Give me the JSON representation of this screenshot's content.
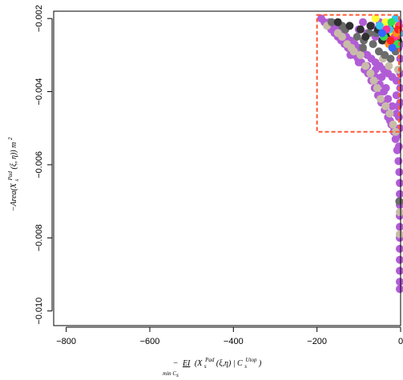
{
  "chart_data": {
    "type": "scatter",
    "title": "",
    "xlabel": {
      "prefix": "−",
      "operator": "EI",
      "operator_sub": "min C",
      "operator_sub2": "s",
      "arg_open": "(X",
      "arg_sub": "s",
      "arg_sup": "Pad",
      "arg_mid": "(ξ,η) | C",
      "cond_sub": "s",
      "cond_sup": "Utop",
      "arg_close": ")"
    },
    "ylabel": {
      "prefix": "−Area(X",
      "sub": "s",
      "sup": "Pad",
      "suffix": "(ξ, η)) m",
      "unit_sup": "2"
    },
    "xlim": [
      -830,
      0
    ],
    "ylim": [
      -0.0104,
      -0.0018
    ],
    "xticks": [
      -800,
      -600,
      -400,
      -200,
      0
    ],
    "xtick_labels": [
      "−800",
      "−600",
      "−400",
      "−200",
      "0"
    ],
    "yticks": [
      -0.01,
      -0.008,
      -0.006,
      -0.004,
      -0.002
    ],
    "ytick_labels": [
      "−0.010",
      "−0.008",
      "−0.006",
      "−0.004",
      "−0.002"
    ],
    "highlight_box": {
      "x": [
        -200,
        0
      ],
      "y": [
        -0.0051,
        -0.0019
      ],
      "color": "#ff5733",
      "style": "dashed"
    },
    "series": [
      {
        "color": "#b15cd6",
        "values": [
          [
            -190,
            -0.002
          ],
          [
            -182,
            -0.0021
          ],
          [
            -174,
            -0.0022
          ],
          [
            -166,
            -0.0023
          ],
          [
            -158,
            -0.0024
          ],
          [
            -150,
            -0.0025
          ],
          [
            -142,
            -0.0026
          ],
          [
            -134,
            -0.0027
          ],
          [
            -126,
            -0.0028
          ],
          [
            -118,
            -0.0029
          ],
          [
            -110,
            -0.003
          ],
          [
            -102,
            -0.0031
          ],
          [
            -94,
            -0.0032
          ],
          [
            -86,
            -0.0034
          ],
          [
            -78,
            -0.0035
          ],
          [
            -70,
            -0.0037
          ],
          [
            -62,
            -0.0039
          ],
          [
            -54,
            -0.0041
          ],
          [
            -46,
            -0.0043
          ],
          [
            -38,
            -0.0045
          ],
          [
            -30,
            -0.0047
          ],
          [
            -22,
            -0.0049
          ],
          [
            -16,
            -0.0051
          ],
          [
            -12,
            -0.0053
          ],
          [
            -8,
            -0.0056
          ],
          [
            -5,
            -0.0059
          ],
          [
            -3,
            -0.0062
          ],
          [
            -2,
            -0.0065
          ],
          [
            -2,
            -0.0068
          ],
          [
            -2,
            -0.0071
          ],
          [
            -2,
            -0.0074
          ],
          [
            -2,
            -0.0077
          ],
          [
            -2,
            -0.008
          ],
          [
            -2,
            -0.0083
          ],
          [
            -2,
            -0.0086
          ],
          [
            -2,
            -0.0089
          ],
          [
            -2,
            -0.0092
          ],
          [
            -2,
            -0.0094
          ],
          [
            -170,
            -0.0021
          ],
          [
            -160,
            -0.0022
          ],
          [
            -150,
            -0.0023
          ],
          [
            -140,
            -0.0024
          ],
          [
            -130,
            -0.0025
          ],
          [
            -120,
            -0.0026
          ],
          [
            -110,
            -0.0027
          ],
          [
            -100,
            -0.0028
          ],
          [
            -90,
            -0.0029
          ],
          [
            -80,
            -0.003
          ],
          [
            -70,
            -0.0031
          ],
          [
            -60,
            -0.0032
          ],
          [
            -50,
            -0.0033
          ],
          [
            -40,
            -0.0034
          ],
          [
            -30,
            -0.0035
          ],
          [
            -20,
            -0.0036
          ],
          [
            -10,
            -0.0037
          ],
          [
            -60,
            -0.0036
          ],
          [
            -50,
            -0.0038
          ],
          [
            -40,
            -0.004
          ],
          [
            -30,
            -0.0042
          ],
          [
            -20,
            -0.0044
          ],
          [
            -10,
            -0.0046
          ],
          [
            -25,
            -0.0048
          ],
          [
            -15,
            -0.005
          ],
          [
            -8,
            -0.0052
          ],
          [
            -4,
            -0.0055
          ],
          [
            -100,
            -0.0023
          ],
          [
            -80,
            -0.0024
          ],
          [
            -60,
            -0.0025
          ],
          [
            -40,
            -0.0026
          ],
          [
            -20,
            -0.0027
          ],
          [
            -5,
            -0.0028
          ],
          [
            -120,
            -0.003
          ],
          [
            -100,
            -0.0032
          ],
          [
            -80,
            -0.0033
          ],
          [
            -60,
            -0.0034
          ],
          [
            -45,
            -0.0036
          ],
          [
            -35,
            -0.0039
          ],
          [
            -10,
            -0.0041
          ],
          [
            -6,
            -0.0044
          ],
          [
            -4,
            -0.0047
          ],
          [
            -2,
            -0.005
          ],
          [
            -30,
            -0.0022
          ],
          [
            -15,
            -0.0023
          ],
          [
            -5,
            -0.0021
          ],
          [
            -50,
            -0.0021
          ],
          [
            -70,
            -0.0022
          ],
          [
            -90,
            -0.0021
          ],
          [
            -1,
            -0.0031
          ],
          [
            -1,
            -0.0035
          ],
          [
            -1,
            -0.0039
          ],
          [
            -1,
            -0.0043
          ],
          [
            -1,
            -0.0024
          ],
          [
            -1,
            -0.0027
          ]
        ]
      },
      {
        "color": "#c8bca8",
        "values": [
          [
            -176,
            -0.0022
          ],
          [
            -150,
            -0.0024
          ],
          [
            -128,
            -0.0027
          ],
          [
            -112,
            -0.0029
          ],
          [
            -96,
            -0.003
          ],
          [
            -84,
            -0.0033
          ],
          [
            -72,
            -0.0035
          ],
          [
            -64,
            -0.0037
          ],
          [
            -56,
            -0.0039
          ],
          [
            -48,
            -0.0042
          ],
          [
            -36,
            -0.0044
          ],
          [
            -26,
            -0.0046
          ],
          [
            -18,
            -0.0049
          ],
          [
            -12,
            -0.0051
          ],
          [
            -140,
            -0.0025
          ],
          [
            -118,
            -0.0028
          ],
          [
            -42,
            -0.0031
          ],
          [
            -28,
            -0.0033
          ],
          [
            -6,
            -0.0034
          ],
          [
            -2,
            -0.0073
          ],
          [
            -2,
            -0.0079
          ]
        ]
      },
      {
        "color": "#6b6b6b",
        "values": [
          [
            -165,
            -0.0021
          ],
          [
            -132,
            -0.0023
          ],
          [
            -104,
            -0.0025
          ],
          [
            -88,
            -0.0026
          ],
          [
            -66,
            -0.0027
          ],
          [
            -52,
            -0.0029
          ],
          [
            -38,
            -0.003
          ],
          [
            -24,
            -0.0031
          ],
          [
            -12,
            -0.0029
          ],
          [
            -140,
            -0.0022
          ],
          [
            -75,
            -0.0024
          ],
          [
            -58,
            -0.0024
          ],
          [
            -20,
            -0.0025
          ],
          [
            -90,
            -0.0028
          ],
          [
            -3,
            -0.007
          ]
        ]
      },
      {
        "color": "#2f2f2f",
        "values": [
          [
            -150,
            -0.0021
          ],
          [
            -122,
            -0.0022
          ],
          [
            -96,
            -0.0023
          ],
          [
            -72,
            -0.0022
          ],
          [
            -54,
            -0.0023
          ],
          [
            -30,
            -0.0024
          ],
          [
            -18,
            -0.0022
          ],
          [
            -6,
            -0.0026
          ],
          [
            -44,
            -0.0026
          ],
          [
            -84,
            -0.0025
          ]
        ]
      },
      {
        "color": "#ffff33",
        "values": [
          [
            -60,
            -0.002
          ],
          [
            -36,
            -0.0021
          ],
          [
            -18,
            -0.0024
          ],
          [
            -8,
            -0.0022
          ]
        ]
      },
      {
        "color": "#33c6f0",
        "values": [
          [
            -50,
            -0.0022
          ],
          [
            -26,
            -0.0023
          ],
          [
            -12,
            -0.002
          ],
          [
            -4,
            -0.0024
          ]
        ]
      },
      {
        "color": "#33dd55",
        "values": [
          [
            -40,
            -0.0025
          ],
          [
            -22,
            -0.0021
          ],
          [
            -8,
            -0.0027
          ],
          [
            -16,
            -0.0026
          ]
        ]
      },
      {
        "color": "#ff3399",
        "values": [
          [
            -34,
            -0.0023
          ],
          [
            -14,
            -0.0025
          ],
          [
            -4,
            -0.0022
          ]
        ]
      },
      {
        "color": "#ff8c1a",
        "values": [
          [
            -28,
            -0.0027
          ],
          [
            -10,
            -0.0024
          ]
        ]
      },
      {
        "color": "#3366ff",
        "values": [
          [
            -44,
            -0.0024
          ],
          [
            -20,
            -0.0028
          ]
        ]
      },
      {
        "color": "#ff2222",
        "values": [
          [
            -24,
            -0.0026
          ],
          [
            -6,
            -0.0023
          ]
        ]
      }
    ]
  }
}
